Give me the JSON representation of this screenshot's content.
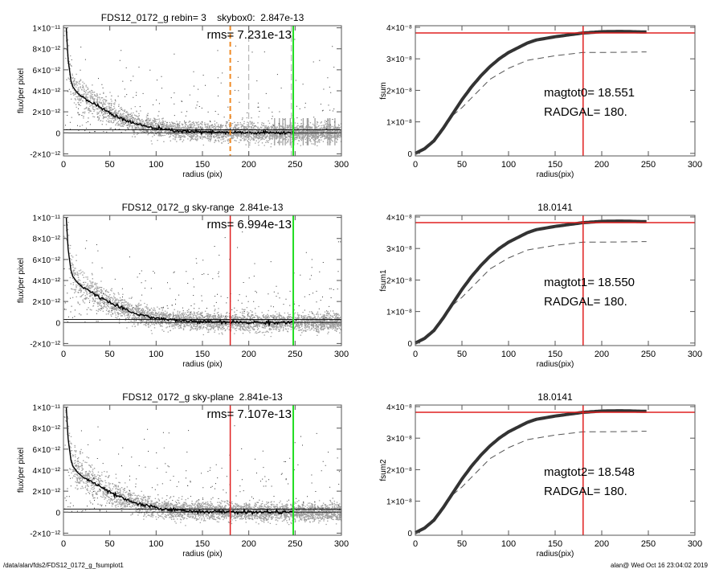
{
  "footer": {
    "path": "/data/alan/fds2/FDS12_0172_g_fsumplot1",
    "stamp": "alan@  Wed Oct 16 23:04:02 2019"
  },
  "colors": {
    "sky": "#a0a0a0",
    "profile": "#000000",
    "orange": "#f08a24",
    "green": "#22dd22",
    "red": "#e02020",
    "outlier": "#333333"
  },
  "chart_data": [
    {
      "type": "scatter",
      "title": "FDS12_0172_g rebin= 3    skybox0:  2.847e-13",
      "annotation": "rms= 7.231e-13",
      "xlabel": "radius (pix)",
      "ylabel": "flux/per pixel",
      "xlim": [
        0,
        300
      ],
      "ylim": [
        -2.2e-12,
        1.02e-11
      ],
      "xticks": [
        "0",
        "50",
        "100",
        "150",
        "200",
        "250",
        "300"
      ],
      "yticks": [
        {
          "v": -2e-12,
          "label": "-2×10⁻¹²"
        },
        {
          "v": 0,
          "label": "0"
        },
        {
          "v": 2e-12,
          "label": "2×10⁻¹²"
        },
        {
          "v": 4e-12,
          "label": "4×10⁻¹²"
        },
        {
          "v": 6e-12,
          "label": "6×10⁻¹²"
        },
        {
          "v": 8e-12,
          "label": "8×10⁻¹²"
        },
        {
          "v": 1e-11,
          "label": "1×10⁻¹¹"
        }
      ],
      "profile": {
        "x": [
          3,
          5,
          8,
          10,
          15,
          20,
          30,
          40,
          50,
          60,
          70,
          80,
          100,
          120,
          150,
          200,
          248
        ],
        "y": [
          1e-11,
          7e-12,
          5e-12,
          4.4e-12,
          3.8e-12,
          3.4e-12,
          2.9e-12,
          2.4e-12,
          1.9e-12,
          1.45e-12,
          1.1e-12,
          8e-13,
          4e-13,
          2e-13,
          6e-14,
          0,
          0
        ]
      },
      "hlines": [
        0,
        2.847e-13
      ],
      "vlines": [
        {
          "x": 180,
          "style": "orange-dashed"
        },
        {
          "x": 200,
          "style": "gray-dashed"
        },
        {
          "x": 246,
          "style": "gray-dashed"
        },
        {
          "x": 248,
          "style": "green"
        }
      ]
    },
    {
      "type": "line",
      "title": "",
      "xlabel": "radius(pix)",
      "ylabel": "fsum",
      "xlim": [
        0,
        300
      ],
      "ylim": [
        -8e-10,
        4.05e-08
      ],
      "xticks": [
        "0",
        "50",
        "100",
        "150",
        "200",
        "250",
        "300"
      ],
      "yticks": [
        {
          "v": 0,
          "label": "0"
        },
        {
          "v": 1e-08,
          "label": "1×10⁻⁸"
        },
        {
          "v": 2e-08,
          "label": "2×10⁻⁸"
        },
        {
          "v": 3e-08,
          "label": "3×10⁻⁸"
        },
        {
          "v": 4e-08,
          "label": "4×10⁻⁸"
        }
      ],
      "labels": [
        "magtot0=  18.551",
        "RADGAL=    180."
      ],
      "fsum": {
        "x": [
          0,
          10,
          20,
          30,
          40,
          50,
          60,
          70,
          80,
          90,
          100,
          110,
          120,
          130,
          150,
          180,
          200,
          220,
          248
        ],
        "y": [
          0,
          1.5e-09,
          4e-09,
          8e-09,
          1.25e-08,
          1.7e-08,
          2.1e-08,
          2.45e-08,
          2.75e-08,
          3e-08,
          3.2e-08,
          3.35e-08,
          3.5e-08,
          3.6e-08,
          3.7e-08,
          3.82e-08,
          3.86e-08,
          3.87e-08,
          3.85e-08
        ]
      },
      "dashed": {
        "x": [
          40,
          50,
          60,
          70,
          80,
          100,
          120,
          130,
          150,
          180,
          200,
          248
        ],
        "y": [
          1.2e-08,
          1.45e-08,
          1.75e-08,
          2.05e-08,
          2.35e-08,
          2.7e-08,
          2.95e-08,
          3e-08,
          3.1e-08,
          3.2e-08,
          3.2e-08,
          3.22e-08
        ]
      },
      "hline": 3.82e-08,
      "vline": 180
    },
    {
      "type": "scatter",
      "title": "FDS12_0172_g sky-range  2.841e-13",
      "annotation": "rms= 6.994e-13",
      "xlabel": "radius (pix)",
      "ylabel": "flux/per pixel",
      "xlim": [
        0,
        300
      ],
      "ylim": [
        -2.2e-12,
        1.02e-11
      ],
      "xticks": [
        "0",
        "50",
        "100",
        "150",
        "200",
        "250",
        "300"
      ],
      "yticks": [
        {
          "v": -2e-12,
          "label": "-2×10⁻¹²"
        },
        {
          "v": 0,
          "label": "0"
        },
        {
          "v": 2e-12,
          "label": "2×10⁻¹²"
        },
        {
          "v": 4e-12,
          "label": "4×10⁻¹²"
        },
        {
          "v": 6e-12,
          "label": "6×10⁻¹²"
        },
        {
          "v": 8e-12,
          "label": "8×10⁻¹²"
        },
        {
          "v": 1e-11,
          "label": "1×10⁻¹¹"
        }
      ],
      "profile": {
        "x": [
          3,
          5,
          8,
          10,
          15,
          20,
          30,
          40,
          50,
          60,
          70,
          80,
          100,
          120,
          150,
          200,
          248
        ],
        "y": [
          1e-11,
          7e-12,
          5e-12,
          4.4e-12,
          3.8e-12,
          3.4e-12,
          2.9e-12,
          2.4e-12,
          1.9e-12,
          1.45e-12,
          1.1e-12,
          8e-13,
          4e-13,
          2e-13,
          6e-14,
          0,
          0
        ]
      },
      "hlines": [
        0,
        2.841e-13
      ],
      "vlines": [
        {
          "x": 180,
          "style": "red"
        },
        {
          "x": 248,
          "style": "green"
        }
      ]
    },
    {
      "type": "line",
      "title": "18.0141",
      "xlabel": "radius(pix)",
      "ylabel": "fsum1",
      "xlim": [
        0,
        300
      ],
      "ylim": [
        -8e-10,
        4.05e-08
      ],
      "xticks": [
        "0",
        "50",
        "100",
        "150",
        "200",
        "250",
        "300"
      ],
      "yticks": [
        {
          "v": 0,
          "label": "0"
        },
        {
          "v": 1e-08,
          "label": "1×10⁻⁸"
        },
        {
          "v": 2e-08,
          "label": "2×10⁻⁸"
        },
        {
          "v": 3e-08,
          "label": "3×10⁻⁸"
        },
        {
          "v": 4e-08,
          "label": "4×10⁻⁸"
        }
      ],
      "labels": [
        "magtot1=  18.550",
        "RADGAL=    180."
      ],
      "fsum": {
        "x": [
          0,
          10,
          20,
          30,
          40,
          50,
          60,
          70,
          80,
          90,
          100,
          110,
          120,
          130,
          150,
          180,
          200,
          220,
          248
        ],
        "y": [
          0,
          1.5e-09,
          4e-09,
          8e-09,
          1.25e-08,
          1.7e-08,
          2.1e-08,
          2.45e-08,
          2.75e-08,
          3e-08,
          3.2e-08,
          3.35e-08,
          3.5e-08,
          3.6e-08,
          3.7e-08,
          3.82e-08,
          3.86e-08,
          3.87e-08,
          3.85e-08
        ]
      },
      "dashed": {
        "x": [
          40,
          50,
          60,
          70,
          80,
          100,
          120,
          130,
          150,
          180,
          200,
          248
        ],
        "y": [
          1.2e-08,
          1.45e-08,
          1.75e-08,
          2.05e-08,
          2.35e-08,
          2.7e-08,
          2.95e-08,
          3e-08,
          3.1e-08,
          3.2e-08,
          3.2e-08,
          3.22e-08
        ]
      },
      "hline": 3.82e-08,
      "vline": 180
    },
    {
      "type": "scatter",
      "title": "FDS12_0172_g sky-plane  2.841e-13",
      "annotation": "rms= 7.107e-13",
      "xlabel": "radius (pix)",
      "ylabel": "flux/per pixel",
      "xlim": [
        0,
        300
      ],
      "ylim": [
        -2.2e-12,
        1.02e-11
      ],
      "xticks": [
        "0",
        "50",
        "100",
        "150",
        "200",
        "250",
        "300"
      ],
      "yticks": [
        {
          "v": -2e-12,
          "label": "-2×10⁻¹²"
        },
        {
          "v": 0,
          "label": "0"
        },
        {
          "v": 2e-12,
          "label": "2×10⁻¹²"
        },
        {
          "v": 4e-12,
          "label": "4×10⁻¹²"
        },
        {
          "v": 6e-12,
          "label": "6×10⁻¹²"
        },
        {
          "v": 8e-12,
          "label": "8×10⁻¹²"
        },
        {
          "v": 1e-11,
          "label": "1×10⁻¹¹"
        }
      ],
      "profile": {
        "x": [
          3,
          5,
          8,
          10,
          15,
          20,
          30,
          40,
          50,
          60,
          70,
          80,
          100,
          120,
          150,
          200,
          248
        ],
        "y": [
          1e-11,
          7e-12,
          5e-12,
          4.4e-12,
          3.8e-12,
          3.4e-12,
          2.9e-12,
          2.4e-12,
          1.9e-12,
          1.45e-12,
          1.1e-12,
          8e-13,
          4e-13,
          2e-13,
          6e-14,
          0,
          0
        ]
      },
      "hlines": [
        0,
        2.841e-13
      ],
      "vlines": [
        {
          "x": 180,
          "style": "red"
        },
        {
          "x": 248,
          "style": "green"
        }
      ]
    },
    {
      "type": "line",
      "title": "18.0141",
      "xlabel": "radius(pix)",
      "ylabel": "fsum2",
      "xlim": [
        0,
        300
      ],
      "ylim": [
        -8e-10,
        4.05e-08
      ],
      "xticks": [
        "0",
        "50",
        "100",
        "150",
        "200",
        "250",
        "300"
      ],
      "yticks": [
        {
          "v": 0,
          "label": "0"
        },
        {
          "v": 1e-08,
          "label": "1×10⁻⁸"
        },
        {
          "v": 2e-08,
          "label": "2×10⁻⁸"
        },
        {
          "v": 3e-08,
          "label": "3×10⁻⁸"
        },
        {
          "v": 4e-08,
          "label": "4×10⁻⁸"
        }
      ],
      "labels": [
        "magtot2=  18.548",
        "RADGAL=    180."
      ],
      "fsum": {
        "x": [
          0,
          10,
          20,
          30,
          40,
          50,
          60,
          70,
          80,
          90,
          100,
          110,
          120,
          130,
          150,
          180,
          200,
          220,
          248
        ],
        "y": [
          0,
          1.5e-09,
          4e-09,
          8e-09,
          1.25e-08,
          1.7e-08,
          2.1e-08,
          2.45e-08,
          2.75e-08,
          3e-08,
          3.2e-08,
          3.35e-08,
          3.5e-08,
          3.6e-08,
          3.7e-08,
          3.82e-08,
          3.86e-08,
          3.87e-08,
          3.85e-08
        ]
      },
      "dashed": {
        "x": [
          40,
          50,
          60,
          70,
          80,
          100,
          120,
          130,
          150,
          180,
          200,
          248
        ],
        "y": [
          1.2e-08,
          1.45e-08,
          1.75e-08,
          2.05e-08,
          2.35e-08,
          2.7e-08,
          2.95e-08,
          3e-08,
          3.1e-08,
          3.2e-08,
          3.2e-08,
          3.22e-08
        ]
      },
      "hline": 3.82e-08,
      "vline": 180
    }
  ]
}
